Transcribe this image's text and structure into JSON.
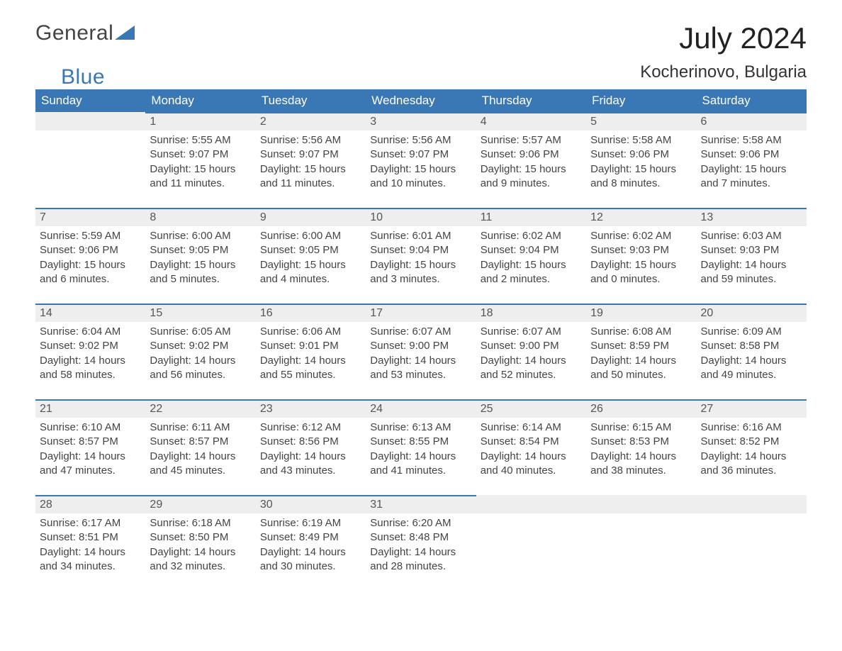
{
  "brand": {
    "word1": "General",
    "word2": "Blue"
  },
  "title": "July 2024",
  "location": "Kocherinovo, Bulgaria",
  "colors": {
    "header_bg": "#3a78b5",
    "header_text": "#ffffff",
    "daynum_bg": "#eeeeee",
    "daynum_border": "#3a78b5",
    "body_text": "#444444",
    "page_bg": "#ffffff"
  },
  "columns": [
    "Sunday",
    "Monday",
    "Tuesday",
    "Wednesday",
    "Thursday",
    "Friday",
    "Saturday"
  ],
  "weeks": [
    [
      {
        "empty": true
      },
      {
        "n": "1",
        "sunrise": "5:55 AM",
        "sunset": "9:07 PM",
        "daylight": "15 hours and 11 minutes."
      },
      {
        "n": "2",
        "sunrise": "5:56 AM",
        "sunset": "9:07 PM",
        "daylight": "15 hours and 11 minutes."
      },
      {
        "n": "3",
        "sunrise": "5:56 AM",
        "sunset": "9:07 PM",
        "daylight": "15 hours and 10 minutes."
      },
      {
        "n": "4",
        "sunrise": "5:57 AM",
        "sunset": "9:06 PM",
        "daylight": "15 hours and 9 minutes."
      },
      {
        "n": "5",
        "sunrise": "5:58 AM",
        "sunset": "9:06 PM",
        "daylight": "15 hours and 8 minutes."
      },
      {
        "n": "6",
        "sunrise": "5:58 AM",
        "sunset": "9:06 PM",
        "daylight": "15 hours and 7 minutes."
      }
    ],
    [
      {
        "n": "7",
        "sunrise": "5:59 AM",
        "sunset": "9:06 PM",
        "daylight": "15 hours and 6 minutes."
      },
      {
        "n": "8",
        "sunrise": "6:00 AM",
        "sunset": "9:05 PM",
        "daylight": "15 hours and 5 minutes."
      },
      {
        "n": "9",
        "sunrise": "6:00 AM",
        "sunset": "9:05 PM",
        "daylight": "15 hours and 4 minutes."
      },
      {
        "n": "10",
        "sunrise": "6:01 AM",
        "sunset": "9:04 PM",
        "daylight": "15 hours and 3 minutes."
      },
      {
        "n": "11",
        "sunrise": "6:02 AM",
        "sunset": "9:04 PM",
        "daylight": "15 hours and 2 minutes."
      },
      {
        "n": "12",
        "sunrise": "6:02 AM",
        "sunset": "9:03 PM",
        "daylight": "15 hours and 0 minutes."
      },
      {
        "n": "13",
        "sunrise": "6:03 AM",
        "sunset": "9:03 PM",
        "daylight": "14 hours and 59 minutes."
      }
    ],
    [
      {
        "n": "14",
        "sunrise": "6:04 AM",
        "sunset": "9:02 PM",
        "daylight": "14 hours and 58 minutes."
      },
      {
        "n": "15",
        "sunrise": "6:05 AM",
        "sunset": "9:02 PM",
        "daylight": "14 hours and 56 minutes."
      },
      {
        "n": "16",
        "sunrise": "6:06 AM",
        "sunset": "9:01 PM",
        "daylight": "14 hours and 55 minutes."
      },
      {
        "n": "17",
        "sunrise": "6:07 AM",
        "sunset": "9:00 PM",
        "daylight": "14 hours and 53 minutes."
      },
      {
        "n": "18",
        "sunrise": "6:07 AM",
        "sunset": "9:00 PM",
        "daylight": "14 hours and 52 minutes."
      },
      {
        "n": "19",
        "sunrise": "6:08 AM",
        "sunset": "8:59 PM",
        "daylight": "14 hours and 50 minutes."
      },
      {
        "n": "20",
        "sunrise": "6:09 AM",
        "sunset": "8:58 PM",
        "daylight": "14 hours and 49 minutes."
      }
    ],
    [
      {
        "n": "21",
        "sunrise": "6:10 AM",
        "sunset": "8:57 PM",
        "daylight": "14 hours and 47 minutes."
      },
      {
        "n": "22",
        "sunrise": "6:11 AM",
        "sunset": "8:57 PM",
        "daylight": "14 hours and 45 minutes."
      },
      {
        "n": "23",
        "sunrise": "6:12 AM",
        "sunset": "8:56 PM",
        "daylight": "14 hours and 43 minutes."
      },
      {
        "n": "24",
        "sunrise": "6:13 AM",
        "sunset": "8:55 PM",
        "daylight": "14 hours and 41 minutes."
      },
      {
        "n": "25",
        "sunrise": "6:14 AM",
        "sunset": "8:54 PM",
        "daylight": "14 hours and 40 minutes."
      },
      {
        "n": "26",
        "sunrise": "6:15 AM",
        "sunset": "8:53 PM",
        "daylight": "14 hours and 38 minutes."
      },
      {
        "n": "27",
        "sunrise": "6:16 AM",
        "sunset": "8:52 PM",
        "daylight": "14 hours and 36 minutes."
      }
    ],
    [
      {
        "n": "28",
        "sunrise": "6:17 AM",
        "sunset": "8:51 PM",
        "daylight": "14 hours and 34 minutes."
      },
      {
        "n": "29",
        "sunrise": "6:18 AM",
        "sunset": "8:50 PM",
        "daylight": "14 hours and 32 minutes."
      },
      {
        "n": "30",
        "sunrise": "6:19 AM",
        "sunset": "8:49 PM",
        "daylight": "14 hours and 30 minutes."
      },
      {
        "n": "31",
        "sunrise": "6:20 AM",
        "sunset": "8:48 PM",
        "daylight": "14 hours and 28 minutes."
      },
      {
        "empty": true
      },
      {
        "empty": true
      },
      {
        "empty": true
      }
    ]
  ],
  "labels": {
    "sunrise": "Sunrise:",
    "sunset": "Sunset:",
    "daylight": "Daylight:"
  }
}
